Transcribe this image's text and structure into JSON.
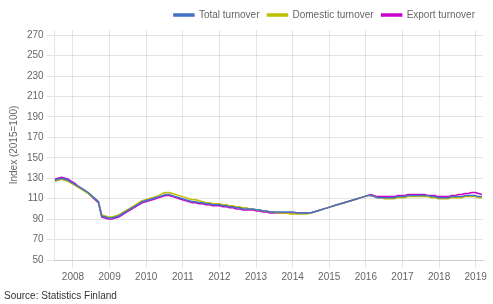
{
  "chart_data": {
    "type": "line",
    "ylabel": "Index (2015=100)",
    "annotations": [
      "Source: Statistics Finland"
    ],
    "xlim": [
      2007.5,
      2019.2
    ],
    "ylim": [
      50,
      275
    ],
    "xticks": [
      2008,
      2009,
      2010,
      2011,
      2012,
      2013,
      2014,
      2015,
      2016,
      2017,
      2018,
      2019
    ],
    "yticks": [
      50,
      70,
      90,
      110,
      130,
      150,
      170,
      190,
      210,
      230,
      250,
      270
    ],
    "grid": true,
    "legend": "upper right",
    "x": [
      2007.5,
      2007.5919,
      2007.6838,
      2007.7757,
      2007.8676,
      2007.9594,
      2008.0513,
      2008.1432,
      2008.2351,
      2008.327,
      2008.4189,
      2008.5108,
      2008.6027,
      2008.6946,
      2008.7865,
      2008.8783,
      2008.9702,
      2009.0621,
      2009.154,
      2009.2459,
      2009.3378,
      2009.4297,
      2009.5216,
      2009.6135,
      2009.7054,
      2009.7972,
      2009.8891,
      2009.981,
      2010.0729,
      2010.1648,
      2010.2567,
      2010.3486,
      2010.4405,
      2010.5324,
      2010.6243,
      2010.7161,
      2010.808,
      2010.8999,
      2010.9918,
      2011.0837,
      2011.1756,
      2011.2675,
      2011.3594,
      2011.4513,
      2011.5431,
      2011.635,
      2011.7269,
      2011.8188,
      2011.9107,
      2012.0026,
      2012.0945,
      2012.1864,
      2012.2783,
      2012.3702,
      2012.462,
      2012.5539,
      2012.6458,
      2012.7377,
      2012.8296,
      2012.9215,
      2013.0134,
      2013.1053,
      2013.1972,
      2013.2891,
      2013.3809,
      2013.4728,
      2013.5647,
      2013.6566,
      2013.7485,
      2013.8404,
      2013.9323,
      2014.0242,
      2014.1161,
      2014.208,
      2014.2998,
      2014.3917,
      2014.4836,
      2014.5755,
      2014.6674,
      2014.7593,
      2014.8512,
      2014.9431,
      2015.035,
      2015.1269,
      2015.2187,
      2015.3106,
      2015.4025,
      2015.4944,
      2015.5863,
      2015.6782,
      2015.7701,
      2015.862,
      2015.9539,
      2016.0457,
      2016.1376,
      2016.2295,
      2016.3214,
      2016.4133,
      2016.5052,
      2016.5971,
      2016.689,
      2016.7809,
      2016.8728,
      2016.9646,
      2017.0565,
      2017.1484,
      2017.2403,
      2017.3322,
      2017.4241,
      2017.516,
      2017.6079,
      2017.6998,
      2017.7917,
      2017.8835,
      2017.9754,
      2018.0673,
      2018.1592,
      2018.2511,
      2018.343,
      2018.4349,
      2018.5268,
      2018.6187,
      2018.7106,
      2018.8024,
      2018.8943,
      2018.9862,
      2019.0781,
      2019.17
    ],
    "series": [
      {
        "name": "Total turnover",
        "color": "#4472C4",
        "values": [
          128,
          129,
          130,
          129,
          128,
          126,
          124,
          122,
          120,
          118,
          116,
          113,
          110,
          107,
          93,
          92,
          91,
          91,
          92,
          93,
          95,
          97,
          99,
          101,
          103,
          105,
          107,
          108,
          109,
          110,
          111,
          112,
          113,
          114,
          114,
          113,
          112,
          111,
          110,
          109,
          108,
          107,
          107,
          106,
          106,
          105,
          105,
          104,
          104,
          104,
          103,
          103,
          102,
          102,
          101,
          101,
          100,
          100,
          100,
          100,
          99,
          99,
          98,
          98,
          97,
          97,
          97,
          97,
          97,
          97,
          97,
          97,
          96,
          96,
          96,
          96,
          96,
          97,
          98,
          99,
          100,
          101,
          102,
          103,
          104,
          105,
          106,
          107,
          108,
          109,
          110,
          111,
          112,
          113,
          113,
          112,
          111,
          111,
          111,
          111,
          111,
          111,
          112,
          112,
          112,
          113,
          113,
          113,
          113,
          113,
          113,
          113,
          112,
          112,
          111,
          111,
          111,
          111,
          112,
          112,
          112,
          112,
          113,
          113,
          113,
          113,
          112,
          112
        ]
      },
      {
        "name": "Domestic turnover",
        "color": "#BFBF00",
        "values": [
          127,
          128,
          129,
          128,
          127,
          125,
          123,
          121,
          119,
          117,
          115,
          112,
          110,
          107,
          94,
          93,
          92,
          92,
          93,
          94,
          96,
          98,
          100,
          102,
          104,
          106,
          108,
          109,
          110,
          111,
          112,
          113,
          115,
          116,
          116,
          115,
          114,
          113,
          112,
          111,
          110,
          109,
          109,
          108,
          107,
          106,
          106,
          105,
          105,
          105,
          104,
          104,
          103,
          103,
          102,
          102,
          101,
          101,
          100,
          100,
          99,
          99,
          98,
          98,
          97,
          97,
          96,
          96,
          96,
          96,
          95,
          95,
          95,
          95,
          95,
          95,
          96,
          97,
          98,
          99,
          100,
          101,
          102,
          103,
          104,
          105,
          106,
          107,
          108,
          109,
          110,
          111,
          112,
          113,
          113,
          112,
          111,
          111,
          110,
          110,
          110,
          110,
          111,
          111,
          111,
          112,
          112,
          112,
          112,
          112,
          112,
          112,
          111,
          111,
          110,
          110,
          110,
          110,
          111,
          111,
          111,
          111,
          112,
          112,
          112,
          112,
          111,
          111
        ]
      },
      {
        "name": "Export turnover",
        "color": "#CC00CC",
        "values": [
          129,
          130,
          131,
          130,
          129,
          127,
          125,
          122,
          120,
          118,
          115,
          112,
          109,
          106,
          92,
          91,
          90,
          90,
          91,
          92,
          94,
          96,
          98,
          100,
          102,
          104,
          106,
          107,
          108,
          109,
          110,
          111,
          112,
          113,
          113,
          112,
          111,
          110,
          109,
          108,
          107,
          106,
          106,
          105,
          105,
          104,
          104,
          103,
          103,
          103,
          102,
          102,
          101,
          101,
          100,
          100,
          99,
          99,
          99,
          99,
          98,
          98,
          97,
          97,
          96,
          96,
          96,
          96,
          96,
          96,
          96,
          96,
          96,
          96,
          96,
          96,
          96,
          97,
          98,
          99,
          100,
          101,
          102,
          103,
          104,
          105,
          106,
          107,
          108,
          109,
          110,
          111,
          112,
          113,
          114,
          113,
          112,
          112,
          112,
          112,
          112,
          112,
          113,
          113,
          113,
          114,
          114,
          114,
          114,
          114,
          114,
          113,
          113,
          113,
          112,
          112,
          112,
          112,
          113,
          113,
          114,
          114,
          115,
          115,
          116,
          116,
          115,
          114
        ]
      }
    ]
  }
}
